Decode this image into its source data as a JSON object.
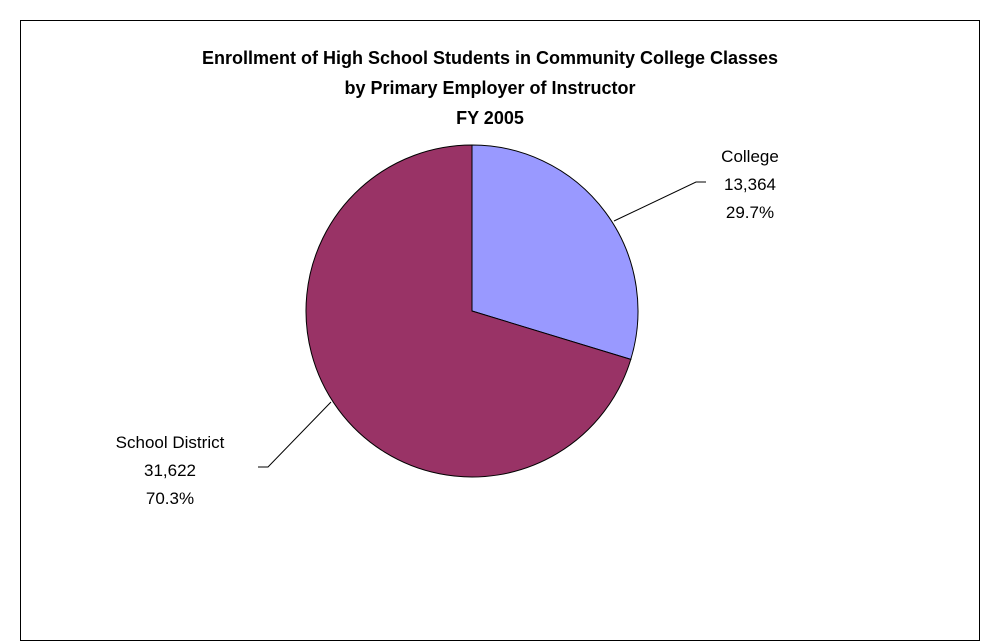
{
  "chart_data": {
    "type": "pie",
    "title_lines": [
      "Enrollment of High School Students in Community College Classes",
      "by Primary Employer of Instructor",
      "FY 2005"
    ],
    "slices": [
      {
        "label": "College",
        "value": 13364,
        "value_text": "13,364",
        "percent_text": "29.7%",
        "color": "#9999ff"
      },
      {
        "label": "School District",
        "value": 31622,
        "value_text": "31,622",
        "percent_text": "70.3%",
        "color": "#993366"
      }
    ],
    "start_angle_deg": 0,
    "direction": "clockwise",
    "legend": "none",
    "data_labels": "outside with leader lines"
  }
}
